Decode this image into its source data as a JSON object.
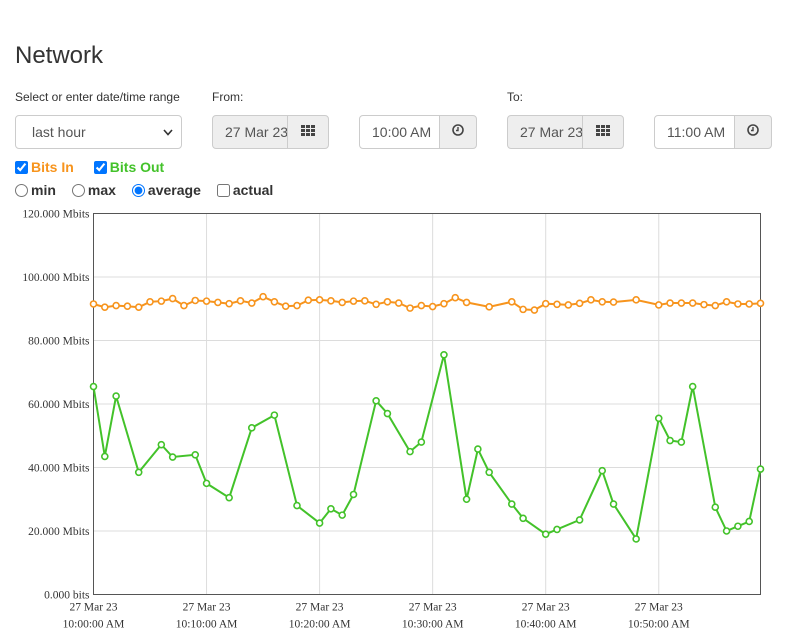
{
  "page": {
    "title": "Network"
  },
  "range": {
    "label": "Select or enter date/time range",
    "selected": "last hour"
  },
  "from": {
    "label": "From:",
    "date": "27 Mar 23",
    "time": "10:00 AM"
  },
  "to": {
    "label": "To:",
    "date": "27 Mar 23",
    "time": "11:00 AM"
  },
  "series_toggles": [
    {
      "label": "Bits In",
      "checked": true,
      "color": "#f7941d"
    },
    {
      "label": "Bits Out",
      "checked": true,
      "color": "#43c22a"
    }
  ],
  "aggregation": {
    "options": [
      "min",
      "max",
      "average"
    ],
    "selected": "average",
    "actual_label": "actual",
    "actual_checked": false
  },
  "icons": {
    "calendar": "calendar-grid-icon",
    "clock": "clock-icon",
    "dropdown": "chevron-down-icon"
  },
  "chart_data": {
    "type": "line",
    "ylim": [
      0,
      120
    ],
    "yticks": [
      "0.000 bits",
      "20.000 Mbits",
      "40.000 Mbits",
      "60.000 Mbits",
      "80.000 Mbits",
      "100.000 Mbits",
      "120.000 Mbits"
    ],
    "xlim": [
      "10:00:00",
      "10:59:00"
    ],
    "xticks": [
      {
        "date": "27 Mar 23",
        "time": "10:00:00 AM"
      },
      {
        "date": "27 Mar 23",
        "time": "10:10:00 AM"
      },
      {
        "date": "27 Mar 23",
        "time": "10:20:00 AM"
      },
      {
        "date": "27 Mar 23",
        "time": "10:30:00 AM"
      },
      {
        "date": "27 Mar 23",
        "time": "10:40:00 AM"
      },
      {
        "date": "27 Mar 23",
        "time": "10:50:00 AM"
      }
    ],
    "grid": true,
    "series": [
      {
        "name": "Bits In",
        "color": "#f7941d",
        "points": [
          [
            "10:00:00",
            91.5
          ],
          [
            "10:01:00",
            90.5
          ],
          [
            "10:02:00",
            91
          ],
          [
            "10:03:00",
            90.8
          ],
          [
            "10:04:00",
            90.5
          ],
          [
            "10:05:00",
            92.2
          ],
          [
            "10:06:00",
            92.4
          ],
          [
            "10:07:00",
            93.2
          ],
          [
            "10:08:00",
            91
          ],
          [
            "10:09:00",
            92.6
          ],
          [
            "10:10:00",
            92.4
          ],
          [
            "10:11:00",
            92
          ],
          [
            "10:12:00",
            91.6
          ],
          [
            "10:13:00",
            92.5
          ],
          [
            "10:14:00",
            91.8
          ],
          [
            "10:15:00",
            93.8
          ],
          [
            "10:16:00",
            92.2
          ],
          [
            "10:17:00",
            90.8
          ],
          [
            "10:18:00",
            91
          ],
          [
            "10:19:00",
            92.7
          ],
          [
            "10:20:00",
            92.8
          ],
          [
            "10:21:00",
            92.5
          ],
          [
            "10:22:00",
            92
          ],
          [
            "10:23:00",
            92.4
          ],
          [
            "10:24:00",
            92.5
          ],
          [
            "10:25:00",
            91.4
          ],
          [
            "10:26:00",
            92.2
          ],
          [
            "10:27:00",
            91.8
          ],
          [
            "10:28:00",
            90.2
          ],
          [
            "10:29:00",
            91
          ],
          [
            "10:30:00",
            90.7
          ],
          [
            "10:31:00",
            91.6
          ],
          [
            "10:32:00",
            93.5
          ],
          [
            "10:33:00",
            92
          ],
          [
            "10:35:00",
            90.6
          ],
          [
            "10:37:00",
            92.2
          ],
          [
            "10:38:00",
            89.8
          ],
          [
            "10:39:00",
            89.6
          ],
          [
            "10:40:00",
            91.6
          ],
          [
            "10:41:00",
            91.4
          ],
          [
            "10:42:00",
            91.2
          ],
          [
            "10:43:00",
            91.7
          ],
          [
            "10:44:00",
            92.8
          ],
          [
            "10:45:00",
            92.2
          ],
          [
            "10:46:00",
            92.1
          ],
          [
            "10:48:00",
            92.8
          ],
          [
            "10:50:00",
            91.2
          ],
          [
            "10:51:00",
            91.8
          ],
          [
            "10:52:00",
            91.8
          ],
          [
            "10:53:00",
            91.8
          ],
          [
            "10:54:00",
            91.3
          ],
          [
            "10:55:00",
            91
          ],
          [
            "10:56:00",
            92.2
          ],
          [
            "10:57:00",
            91.5
          ],
          [
            "10:58:00",
            91.5
          ],
          [
            "10:59:00",
            91.7
          ]
        ]
      },
      {
        "name": "Bits Out",
        "color": "#43c22a",
        "points": [
          [
            "10:00:00",
            65.5
          ],
          [
            "10:01:00",
            43.5
          ],
          [
            "10:02:00",
            62.5
          ],
          [
            "10:04:00",
            38.5
          ],
          [
            "10:06:00",
            47.2
          ],
          [
            "10:07:00",
            43.3
          ],
          [
            "10:09:00",
            44
          ],
          [
            "10:10:00",
            35
          ],
          [
            "10:12:00",
            30.5
          ],
          [
            "10:14:00",
            52.5
          ],
          [
            "10:16:00",
            56.5
          ],
          [
            "10:18:00",
            28
          ],
          [
            "10:20:00",
            22.5
          ],
          [
            "10:21:00",
            27
          ],
          [
            "10:22:00",
            25
          ],
          [
            "10:23:00",
            31.5
          ],
          [
            "10:25:00",
            61
          ],
          [
            "10:26:00",
            57
          ],
          [
            "10:28:00",
            45
          ],
          [
            "10:29:00",
            48
          ],
          [
            "10:31:00",
            75.5
          ],
          [
            "10:33:00",
            30
          ],
          [
            "10:34:00",
            45.8
          ],
          [
            "10:35:00",
            38.5
          ],
          [
            "10:37:00",
            28.5
          ],
          [
            "10:38:00",
            24
          ],
          [
            "10:40:00",
            19
          ],
          [
            "10:41:00",
            20.5
          ],
          [
            "10:43:00",
            23.5
          ],
          [
            "10:45:00",
            39
          ],
          [
            "10:46:00",
            28.5
          ],
          [
            "10:48:00",
            17.5
          ],
          [
            "10:50:00",
            55.5
          ],
          [
            "10:51:00",
            48.5
          ],
          [
            "10:52:00",
            48
          ],
          [
            "10:53:00",
            65.5
          ],
          [
            "10:55:00",
            27.5
          ],
          [
            "10:56:00",
            20
          ],
          [
            "10:57:00",
            21.5
          ],
          [
            "10:58:00",
            23
          ],
          [
            "10:59:00",
            39.5
          ]
        ]
      }
    ]
  }
}
